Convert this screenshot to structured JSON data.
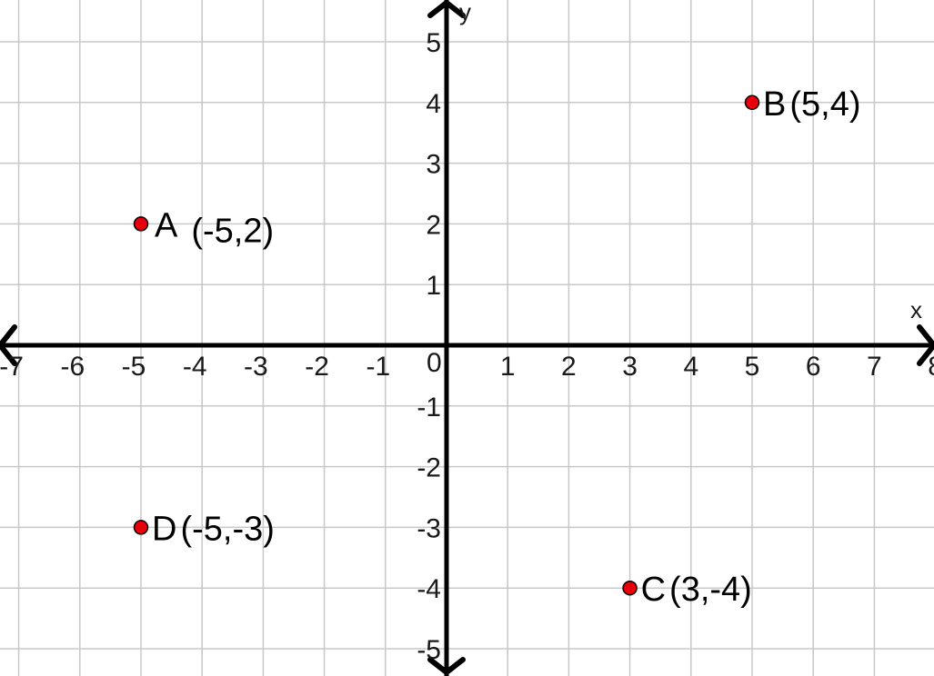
{
  "chart_data": {
    "type": "scatter",
    "xlabel": "x",
    "ylabel": "y",
    "xlim": [
      -7.4,
      8
    ],
    "ylim": [
      -5.5,
      5.7
    ],
    "grid": true,
    "x_ticks": [
      "-7",
      "-6",
      "-5",
      "-4",
      "-3",
      "-2",
      "-1",
      "1",
      "2",
      "3",
      "4",
      "5",
      "6",
      "7",
      "8"
    ],
    "y_ticks": [
      "5",
      "4",
      "3",
      "2",
      "1",
      "-1",
      "-2",
      "-3",
      "-4",
      "-5"
    ],
    "origin_label": "0",
    "point_color": "#e8000b",
    "points": [
      {
        "name": "A",
        "coords": "(-5,2)",
        "x": -5,
        "y": 2
      },
      {
        "name": "B",
        "coords": "(5,4)",
        "x": 5,
        "y": 4
      },
      {
        "name": "C",
        "coords": "(3,-4)",
        "x": 3,
        "y": -4
      },
      {
        "name": "D",
        "coords": "(-5,-3)",
        "x": -5,
        "y": -3
      }
    ]
  }
}
